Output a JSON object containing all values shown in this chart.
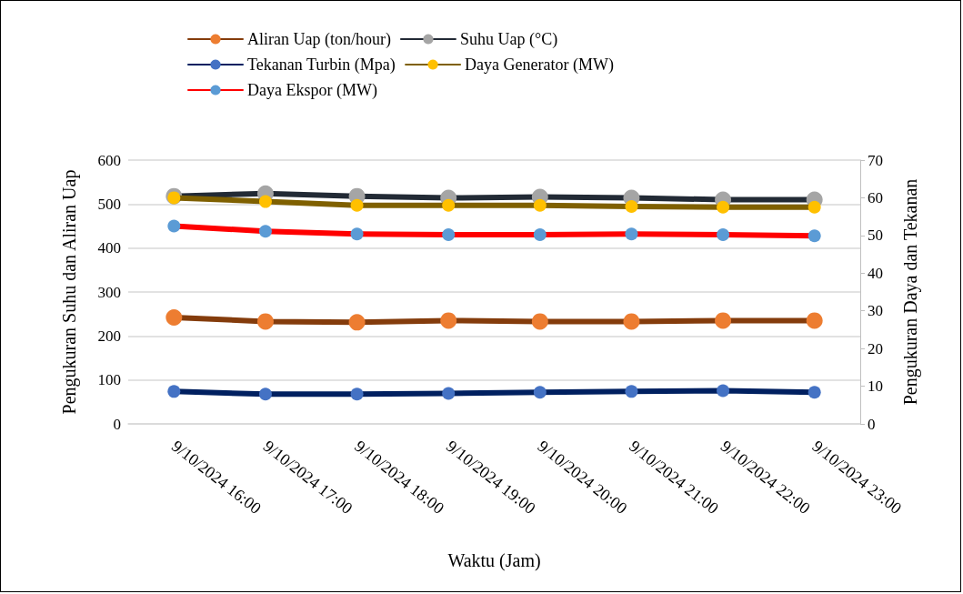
{
  "chart_data": {
    "type": "line",
    "xlabel": "Waktu (Jam)",
    "ylabel": "Pengukuran Suhu dan Aliran Uap",
    "y2label": "Pengukuran Daya dan Tekanan",
    "categories": [
      "9/10/2024 16:00",
      "9/10/2024 17:00",
      "9/10/2024 18:00",
      "9/10/2024 19:00",
      "9/10/2024 20:00",
      "9/10/2024 21:00",
      "9/10/2024 22:00",
      "9/10/2024 23:00"
    ],
    "series": [
      {
        "name": "Aliran Uap (ton/hour)",
        "color": "#843c0c",
        "colors": [
          "#ed7d31",
          "#ed7d31",
          "#ed7d31",
          "#ed7d31",
          "#ed7d31",
          "#ed7d31",
          "#ed7d31",
          "#ed7d31"
        ],
        "values": [
          242,
          233,
          231,
          235,
          233,
          233,
          235,
          235
        ]
      },
      {
        "name": "Suhu Uap (°C)",
        "color": "#222a35",
        "colors": [
          "#a5a5a5",
          "#a5a5a5",
          "#a5a5a5",
          "#a5a5a5",
          "#a5a5a5",
          "#a5a5a5",
          "#a5a5a5",
          "#a5a5a5"
        ],
        "values": [
          518,
          524,
          518,
          514,
          516,
          514,
          510,
          510
        ]
      },
      {
        "name": "Tekanan Turbin (Mpa)",
        "color": "#002060",
        "axis": "y2",
        "colors": [
          "#4472c4",
          "#4472c4",
          "#4472c4",
          "#4472c4",
          "#4472c4",
          "#4472c4",
          "#4472c4",
          "#4472c4"
        ],
        "values": [
          8.6,
          7.9,
          7.9,
          8.1,
          8.4,
          8.6,
          8.8,
          8.4
        ]
      },
      {
        "name": "Daya Generator (MW)",
        "color": "#7f6000",
        "axis": "y2",
        "colors": [
          "#ffc000",
          "#ffc000",
          "#ffc000",
          "#ffc000",
          "#ffc000",
          "#ffc000",
          "#ffc000",
          "#ffc000"
        ],
        "values": [
          60,
          59,
          58,
          58,
          58,
          57.7,
          57.5,
          57.5
        ]
      },
      {
        "name": "Daya Ekspor (MW)",
        "color": "#ff0000",
        "axis": "y2",
        "colors": [
          "#5b9bd5",
          "#5b9bd5",
          "#5b9bd5",
          "#5b9bd5",
          "#5b9bd5",
          "#5b9bd5",
          "#5b9bd5",
          "#5b9bd5"
        ],
        "values": [
          52.5,
          51.1,
          50.4,
          50.2,
          50.2,
          50.4,
          50.2,
          49.9
        ]
      }
    ],
    "ylim": [
      0,
      600
    ],
    "yticks": [
      0,
      100,
      200,
      300,
      400,
      500,
      600
    ],
    "y2lim": [
      0,
      70
    ],
    "y2ticks": [
      0,
      10,
      20,
      30,
      40,
      50,
      60,
      70
    ],
    "grid": "y",
    "legend": "top",
    "marker": "circle",
    "line_style": "solid"
  }
}
